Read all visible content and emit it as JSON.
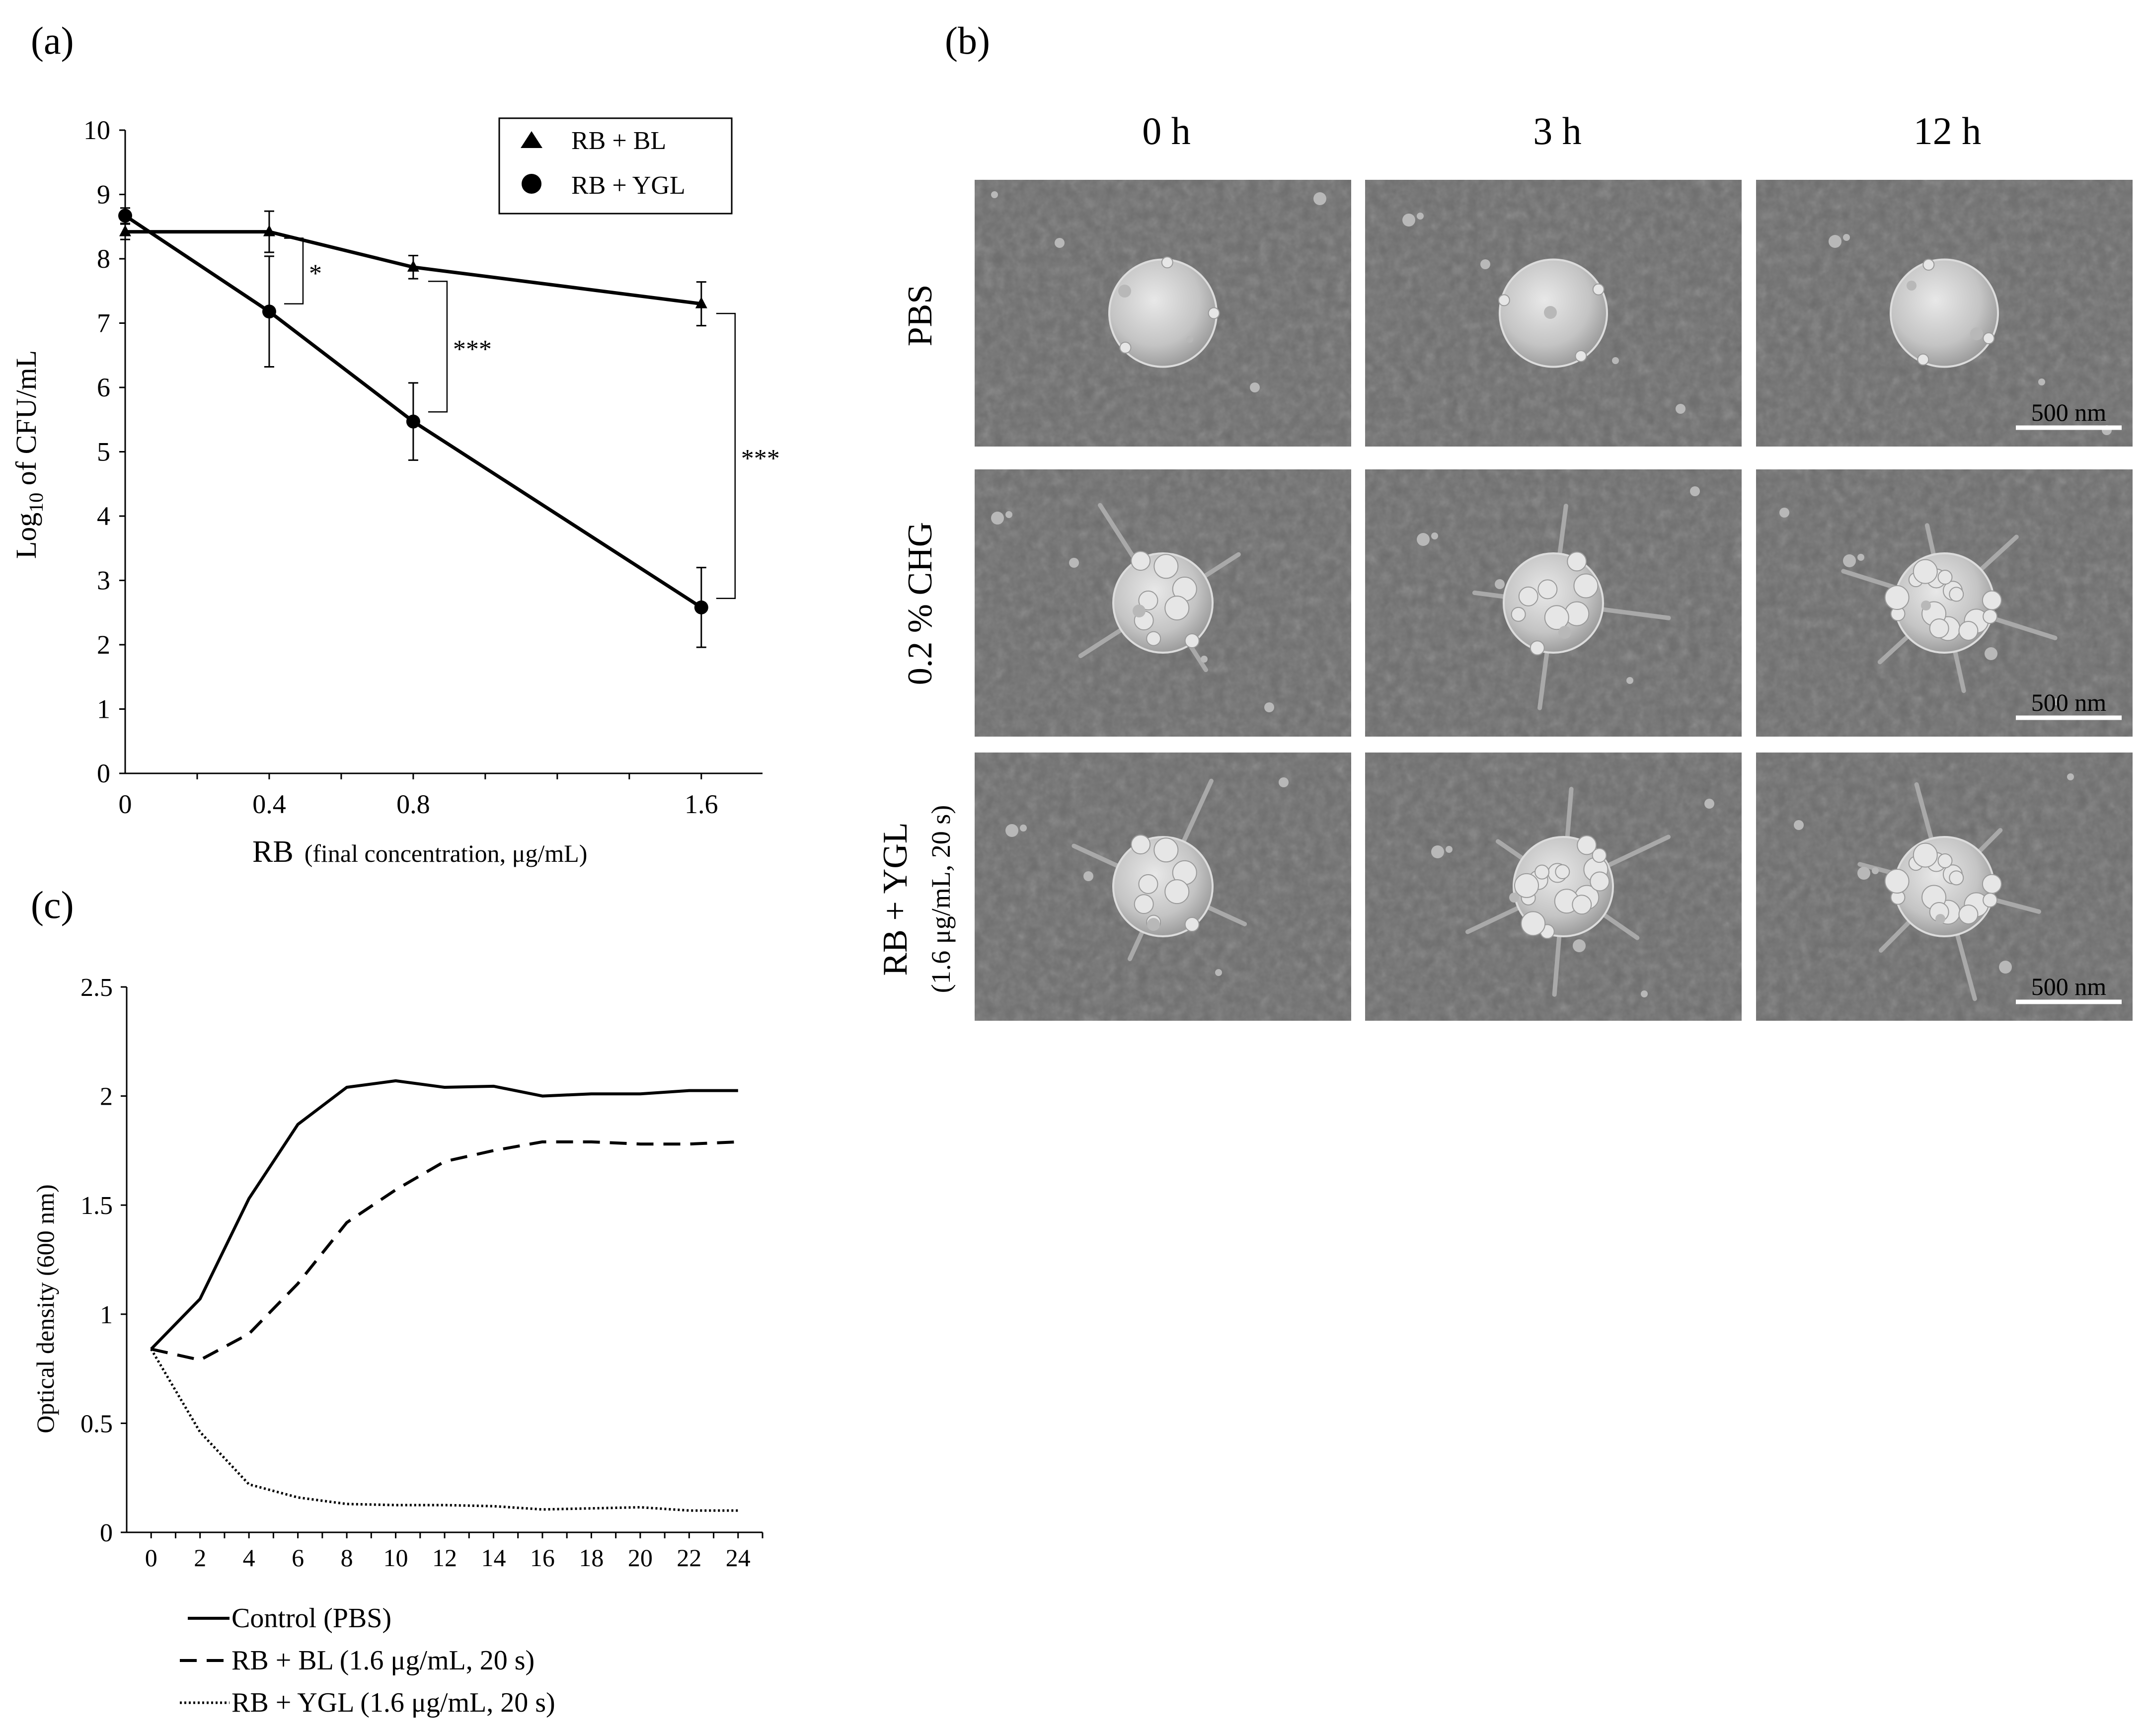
{
  "panels": {
    "a": {
      "label": "(a)"
    },
    "b": {
      "label": "(b)"
    },
    "c": {
      "label": "(c)"
    }
  },
  "chart_data": [
    {
      "panel": "(a)",
      "type": "line",
      "x_categories": [
        "0",
        "0.4",
        "0.8",
        "1.6"
      ],
      "x_values": [
        0,
        0.4,
        0.8,
        1.6
      ],
      "xlim": [
        0,
        1.77
      ],
      "ylim": [
        0,
        10
      ],
      "yticks": [
        "0",
        "1",
        "2",
        "3",
        "4",
        "5",
        "6",
        "7",
        "8",
        "9",
        "10"
      ],
      "ylabel_main": "Log",
      "ylabel_sub": "10",
      "ylabel_rest": " of CFU/mL",
      "xlabel_main": "RB",
      "xlabel_note": "(final concentration, μg/mL)",
      "legend_position": "top-right",
      "grid": false,
      "series": [
        {
          "name": "RB + BL",
          "marker": "triangle",
          "y": [
            8.42,
            8.42,
            7.87,
            7.3
          ],
          "err": [
            0.12,
            0.32,
            0.18,
            0.34
          ]
        },
        {
          "name": "RB + YGL",
          "marker": "circle",
          "y": [
            8.67,
            7.18,
            5.47,
            2.58
          ],
          "err": [
            0.12,
            0.86,
            0.6,
            0.62
          ]
        }
      ],
      "significance": [
        {
          "x": 0.4,
          "y_top": 8.32,
          "y_bottom": 7.3,
          "label": "*"
        },
        {
          "x": 0.8,
          "y_top": 7.65,
          "y_bottom": 5.62,
          "label": "***"
        },
        {
          "x": 1.6,
          "y_top": 7.15,
          "y_bottom": 2.72,
          "label": "***"
        }
      ]
    },
    {
      "panel": "(c)",
      "type": "line",
      "x": [
        0,
        2,
        4,
        6,
        8,
        10,
        12,
        14,
        16,
        18,
        20,
        22,
        24
      ],
      "xticks": [
        "0",
        "2",
        "4",
        "6",
        "8",
        "10",
        "12",
        "14",
        "16",
        "18",
        "20",
        "22",
        "24"
      ],
      "xlim": [
        -1,
        25
      ],
      "ylim": [
        0,
        2.5
      ],
      "yticks": [
        "0",
        "0.5",
        "1",
        "1.5",
        "2",
        "2.5"
      ],
      "ytick_values": [
        0,
        0.5,
        1,
        1.5,
        2,
        2.5
      ],
      "ylabel": "Optical density (600 nm)",
      "legend_position": "bottom",
      "grid": false,
      "series": [
        {
          "name": "Control (PBS)",
          "style": "solid",
          "y": [
            0.84,
            1.07,
            1.53,
            1.87,
            2.04,
            2.07,
            2.04,
            2.045,
            2.0,
            2.01,
            2.01,
            2.025,
            2.025
          ]
        },
        {
          "name": "RB + BL (1.6 μg/mL, 20 s)",
          "style": "dashed",
          "y": [
            0.84,
            0.79,
            0.91,
            1.14,
            1.42,
            1.57,
            1.7,
            1.75,
            1.79,
            1.79,
            1.78,
            1.78,
            1.79
          ]
        },
        {
          "name": "RB + YGL (1.6 μg/mL, 20 s)",
          "style": "dotted",
          "y": [
            0.84,
            0.46,
            0.22,
            0.16,
            0.13,
            0.125,
            0.125,
            0.12,
            0.105,
            0.11,
            0.115,
            0.1,
            0.1
          ]
        }
      ]
    }
  ],
  "sem_grid": {
    "columns": [
      "0 h",
      "3 h",
      "12 h"
    ],
    "rows": [
      {
        "label": "PBS",
        "label2": ""
      },
      {
        "label": "0.2 % CHG",
        "label2": ""
      },
      {
        "label": "RB + YGL",
        "label2": "(1.6 μg/mL, 20 s)"
      }
    ],
    "scale_bar": "500 nm",
    "images": [
      {
        "row": 0,
        "col": 0,
        "morphology": "intact"
      },
      {
        "row": 0,
        "col": 1,
        "morphology": "intact"
      },
      {
        "row": 0,
        "col": 2,
        "morphology": "intact"
      },
      {
        "row": 1,
        "col": 0,
        "morphology": "damaged"
      },
      {
        "row": 1,
        "col": 1,
        "morphology": "damaged"
      },
      {
        "row": 1,
        "col": 2,
        "morphology": "severely-damaged"
      },
      {
        "row": 2,
        "col": 0,
        "morphology": "damaged"
      },
      {
        "row": 2,
        "col": 1,
        "morphology": "severely-damaged"
      },
      {
        "row": 2,
        "col": 2,
        "morphology": "severely-damaged"
      }
    ]
  },
  "colors": {
    "line": "#000000",
    "sem_background": "#6d6d6d",
    "sem_cell": "#c9c9c9",
    "scale_bar": "#ffffff"
  }
}
